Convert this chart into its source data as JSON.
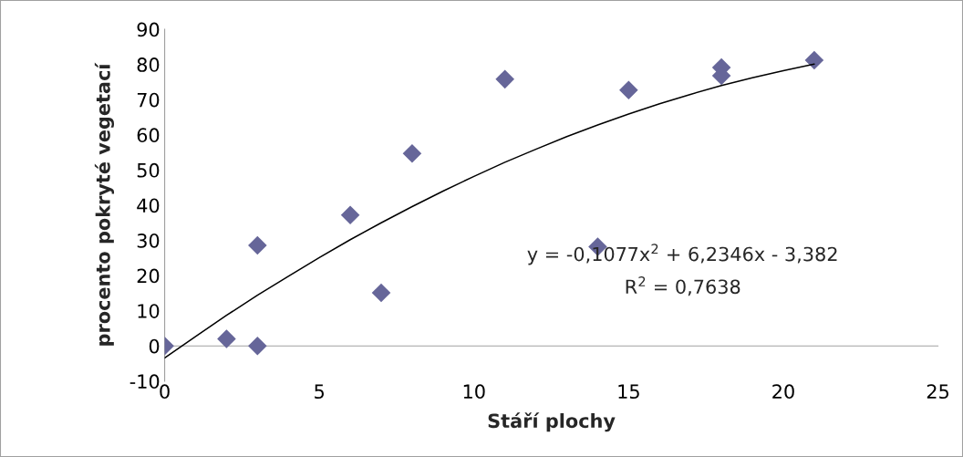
{
  "chart_data": {
    "type": "scatter",
    "xlabel": "Stáří plochy",
    "ylabel": "procento pokryté vegetací",
    "series": [
      {
        "color": "#666699",
        "marker": "diamond",
        "x": [
          0,
          2,
          3,
          3,
          6,
          7,
          8,
          11,
          14,
          15,
          18,
          18,
          21
        ],
        "values": [
          0,
          2,
          0,
          28.6,
          37.2,
          15.1,
          54.7,
          75.8,
          28.2,
          72.7,
          79.1,
          76.8,
          81.2
        ]
      },
      {
        "type": "line",
        "color": "#000000",
        "marker": "none",
        "line_style": "solid",
        "x": [
          0,
          1,
          2,
          3,
          4,
          5,
          6,
          7,
          8,
          9,
          10,
          11,
          12,
          13,
          14,
          15,
          16,
          17,
          18,
          19,
          20,
          21
        ],
        "values": [
          -3.4,
          2.7,
          8.7,
          14.4,
          19.8,
          25.1,
          30.2,
          35.0,
          39.6,
          44.0,
          48.2,
          52.2,
          55.9,
          59.5,
          62.8,
          65.9,
          68.8,
          71.5,
          74.0,
          76.2,
          78.2,
          80.1
        ]
      }
    ],
    "xlim": [
      0,
      25
    ],
    "xticks": [
      0,
      5,
      10,
      15,
      20,
      25
    ],
    "ylim": [
      -10,
      90
    ],
    "yticks": [
      -10,
      0,
      10,
      20,
      30,
      40,
      50,
      60,
      70,
      80,
      90
    ],
    "annotations": [
      "y = -0,1077x$^{2}$ + 6,2346x - 3,382",
      "R$^{2}$ = 0,7638"
    ],
    "grid": false,
    "legend": false
  }
}
